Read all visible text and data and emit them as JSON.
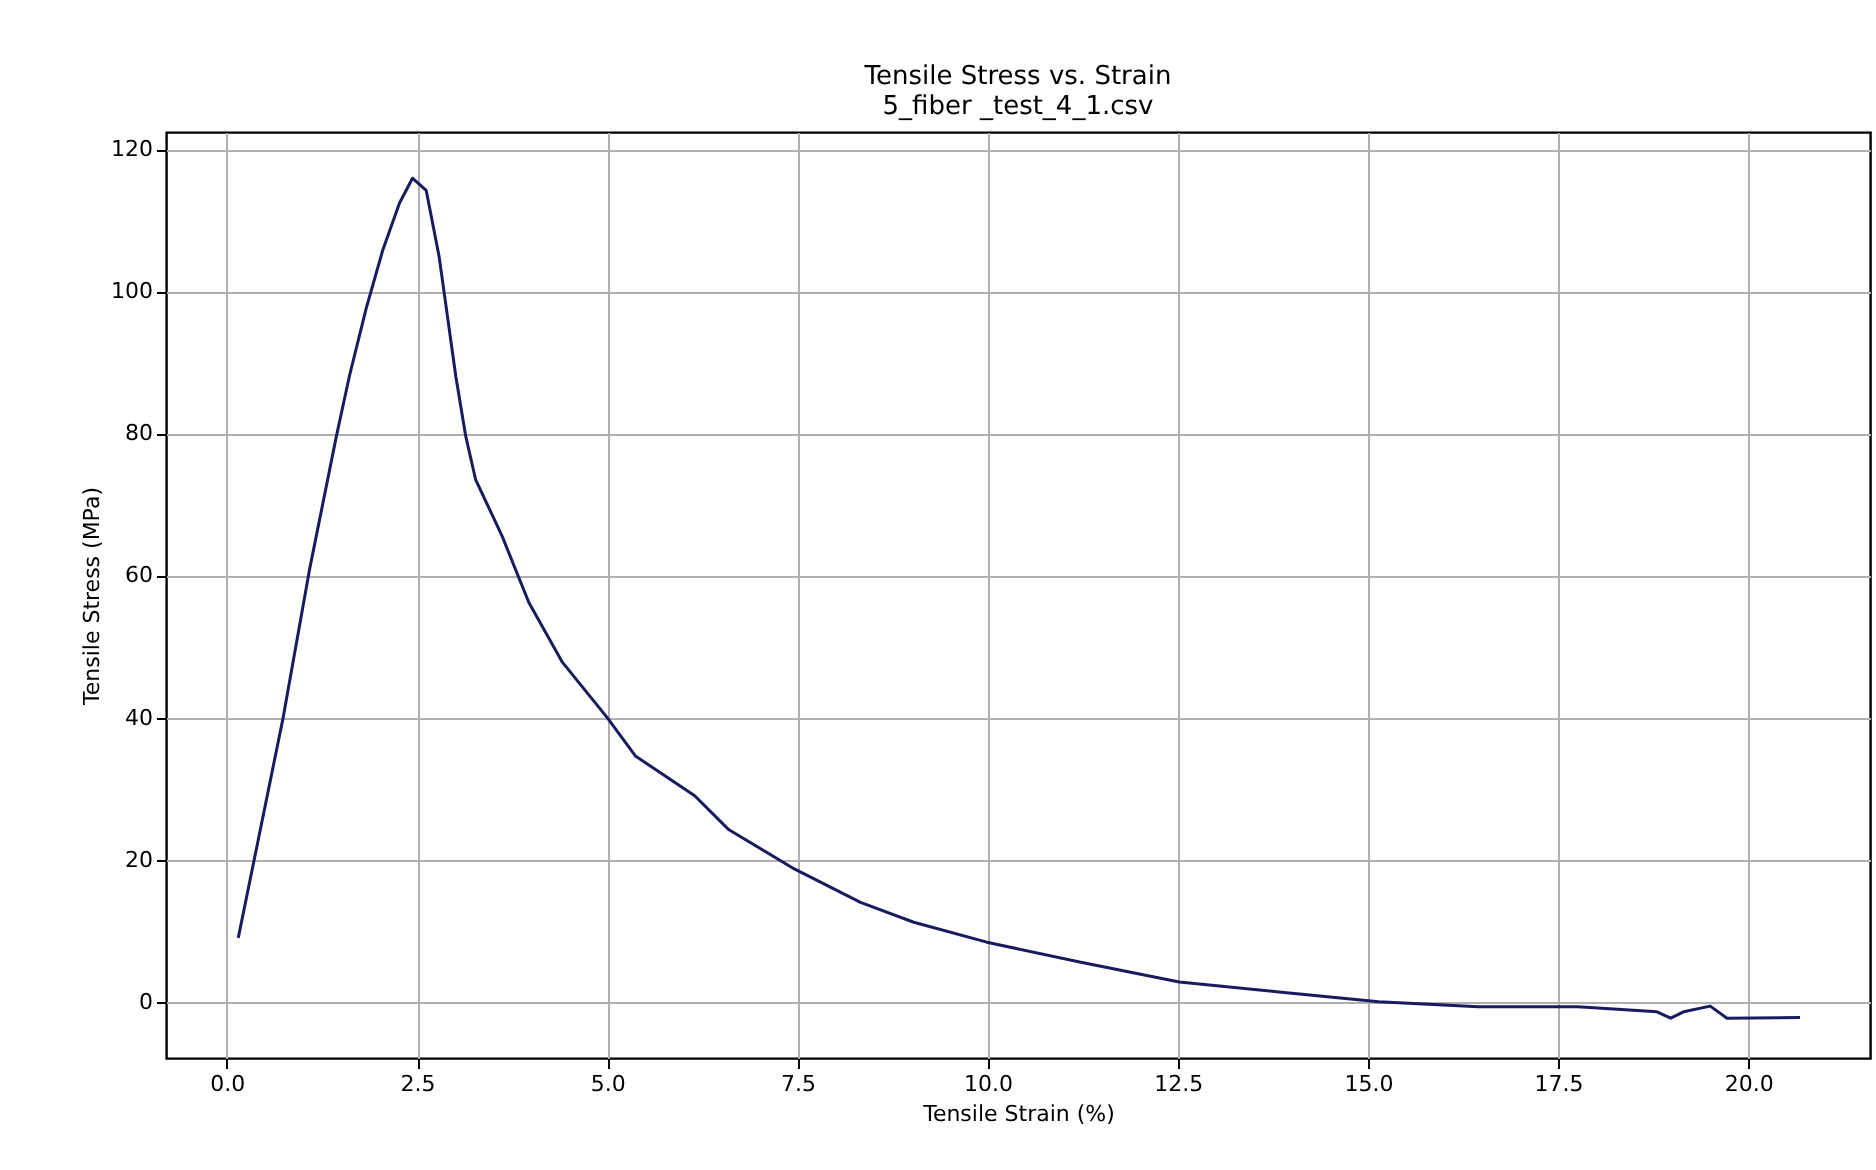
{
  "chart_data": {
    "type": "line",
    "title": "Tensile Stress vs. Strain",
    "subtitle": "5_fiber _test_4_1.csv",
    "xlabel": "Tensile Strain (%)",
    "ylabel": "Tensile Stress (MPa)",
    "xlim": [
      -0.8,
      21.6
    ],
    "ylim": [
      -7.9,
      122.4
    ],
    "xticks": [
      {
        "value": 0,
        "label": "0.0"
      },
      2.5,
      {
        "value": 5,
        "label": "5.0"
      },
      7.5,
      {
        "value": 10,
        "label": "10.0"
      },
      12.5,
      {
        "value": 15,
        "label": "15.0"
      },
      17.5,
      {
        "value": 20,
        "label": "20.0"
      }
    ],
    "yticks": [
      0,
      20,
      40,
      60,
      80,
      100,
      120
    ],
    "grid": true,
    "marker": "none",
    "line_style": "solid",
    "x": [
      0.15,
      0.74,
      1.09,
      1.44,
      1.61,
      1.83,
      2.05,
      2.27,
      2.44,
      2.62,
      2.79,
      3.01,
      3.14,
      3.27,
      3.62,
      3.97,
      4.41,
      5.0,
      5.37,
      6.15,
      6.59,
      7.46,
      8.33,
      9.03,
      9.99,
      11.21,
      12.52,
      13.83,
      15.14,
      16.45,
      17.76,
      18.8,
      18.98,
      19.15,
      19.5,
      19.72,
      20.68
    ],
    "series": [
      {
        "color": "#1a1a5e",
        "values": [
          9,
          40,
          61,
          79.6,
          88,
          97.5,
          105.8,
          112.4,
          115.9,
          114.2,
          104.9,
          88,
          79.6,
          73.5,
          65.5,
          56.2,
          47.8,
          40,
          34.6,
          29,
          24.3,
          18.7,
          14,
          11.2,
          8.4,
          5.6,
          2.8,
          1.4,
          0,
          -0.7,
          -0.7,
          -1.4,
          -2.3,
          -1.4,
          -0.6,
          -2.3,
          -2.2
        ]
      }
    ]
  }
}
